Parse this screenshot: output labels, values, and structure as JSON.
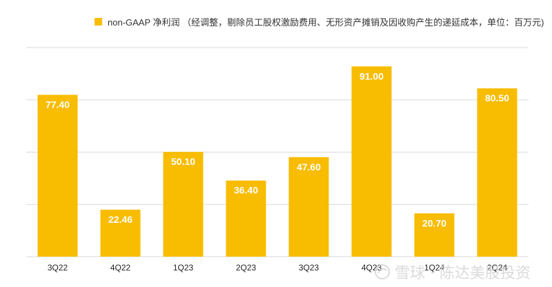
{
  "chart_data": {
    "type": "bar",
    "categories": [
      "3Q22",
      "4Q22",
      "1Q23",
      "2Q23",
      "3Q23",
      "4Q23",
      "1Q24",
      "2Q24"
    ],
    "series": [
      {
        "name": "non-GAAP 净利润 （经调整，剔除员工股权激励费用、无形资产摊销及因收购产生的递延成本，单位：百万元)",
        "values": [
          77.4,
          22.46,
          50.1,
          36.4,
          47.6,
          91.0,
          20.7,
          80.5
        ],
        "labels": [
          "77.40",
          "22.46",
          "50.10",
          "36.40",
          "47.60",
          "91.00",
          "20.70",
          "80.50"
        ]
      }
    ],
    "ylim": [
      0,
      100
    ],
    "grid": true,
    "legend_position": "top",
    "bar_color": "#F8BC00",
    "label_color": "#FFFFFF",
    "grid_color": "#D9D9D9"
  },
  "watermark": {
    "text": "雪球 · 陈达美股投资",
    "icon": "snowball-logo-icon"
  }
}
